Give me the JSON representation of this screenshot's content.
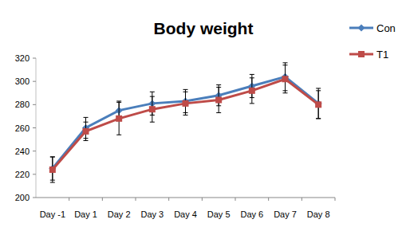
{
  "chart_data": {
    "type": "line",
    "title": "Body weight",
    "categories": [
      "Day -1",
      "Day 1",
      "Day 2",
      "Day 3",
      "Day 4",
      "Day 5",
      "Day 6",
      "Day 7",
      "Day 8"
    ],
    "series": [
      {
        "name": "Con",
        "color": "#4a7ebb",
        "marker": "diamond",
        "values": [
          225,
          260,
          275,
          281,
          283,
          288,
          296,
          304,
          281
        ],
        "errors": [
          10,
          9,
          8,
          10,
          10,
          9,
          10,
          12,
          13
        ]
      },
      {
        "name": "T1",
        "color": "#be4b48",
        "marker": "square",
        "values": [
          224,
          257,
          268,
          276,
          281,
          284,
          292,
          302,
          280
        ],
        "errors": [
          11,
          8,
          14,
          11,
          10,
          11,
          11,
          12,
          12
        ]
      }
    ],
    "ylim": [
      200,
      320
    ],
    "yticks": [
      200,
      220,
      240,
      260,
      280,
      300,
      320
    ],
    "grid": false,
    "legend": "top-right"
  }
}
